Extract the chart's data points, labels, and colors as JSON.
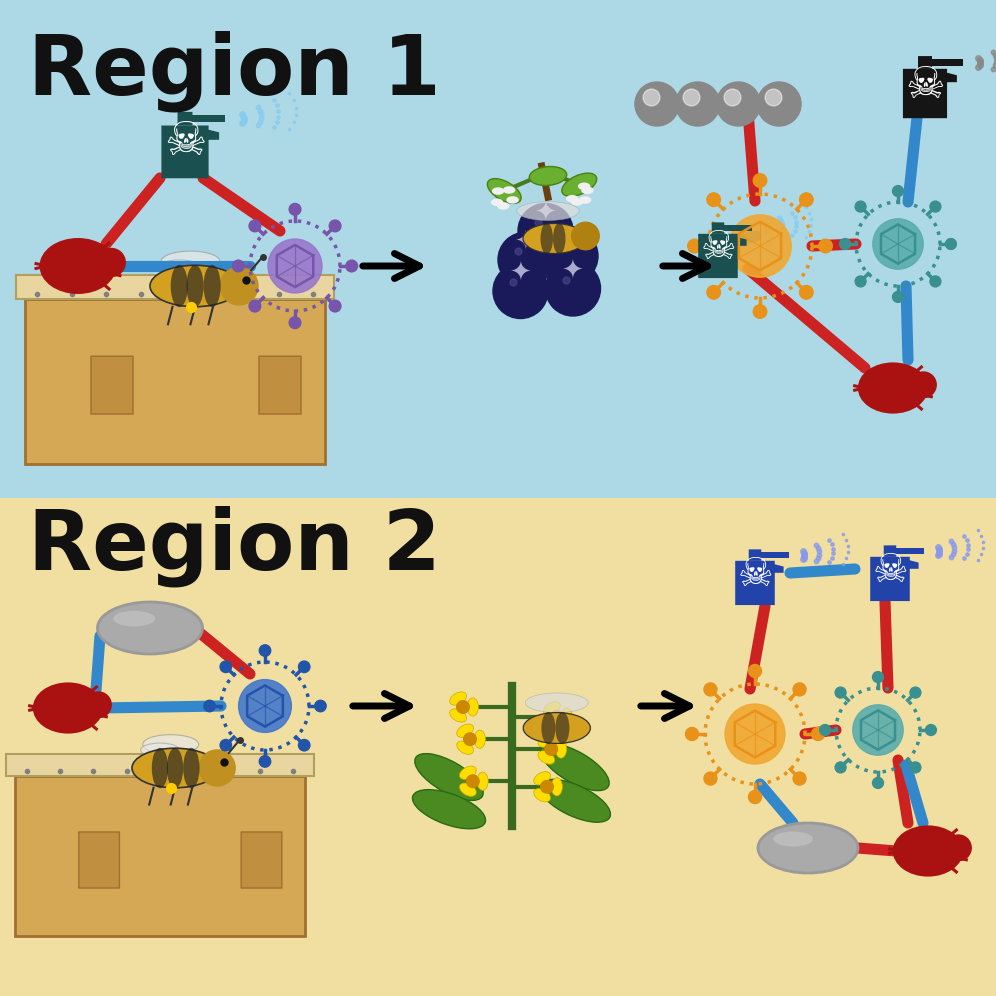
{
  "region1_bg": "#add8e6",
  "region2_bg": "#f0dfa0",
  "title1": "Region 1",
  "title2": "Region 2",
  "title_fontsize": 60,
  "title_color": "#111111",
  "line_red": "#cc2222",
  "line_blue": "#3388cc",
  "virus_orange_color": "#e8921a",
  "virus_orange_inner": "#f0a830",
  "virus_teal_color": "#3a9090",
  "virus_teal_inner": "#5aadad",
  "virus_purple_color": "#7755aa",
  "virus_purple_inner": "#9977cc",
  "virus_blue_color": "#2255aa",
  "virus_blue_inner": "#4477cc",
  "mite_color": "#aa1111",
  "pesticide_dark": "#1a5050",
  "pesticide_black": "#151515",
  "pesticide_blue": "#2244aa",
  "line_width": 8
}
